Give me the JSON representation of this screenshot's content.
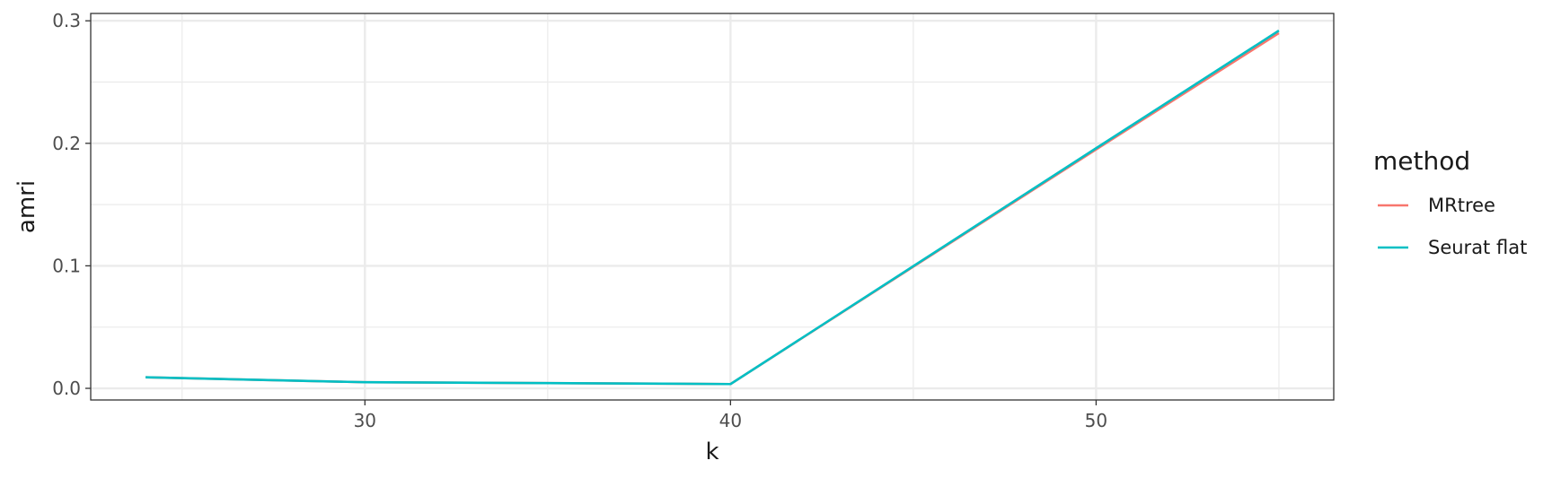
{
  "chart_data": {
    "type": "line",
    "xlabel": "k",
    "ylabel": "amri",
    "xlim": [
      22.5,
      56.5
    ],
    "ylim": [
      -0.0095,
      0.306
    ],
    "x_ticks": [
      30,
      40,
      50
    ],
    "x_minor_ticks": [
      25,
      35,
      45,
      55
    ],
    "y_ticks": [
      0.0,
      0.1,
      0.2,
      0.3
    ],
    "y_tick_labels": [
      "0.0",
      "0.1",
      "0.2",
      "0.3"
    ],
    "y_minor_ticks": [
      0.05,
      0.15,
      0.25
    ],
    "grid": true,
    "legend": {
      "title": "method",
      "position": "right"
    },
    "series": [
      {
        "name": "MRtree",
        "color": "#F8766D",
        "x": [
          24,
          30,
          40,
          50,
          55
        ],
        "y": [
          0.009,
          0.005,
          0.0035,
          0.195,
          0.29
        ]
      },
      {
        "name": "Seurat flat",
        "color": "#00BFC4",
        "x": [
          24,
          30,
          40,
          50,
          55
        ],
        "y": [
          0.009,
          0.005,
          0.0035,
          0.196,
          0.292
        ]
      }
    ]
  }
}
